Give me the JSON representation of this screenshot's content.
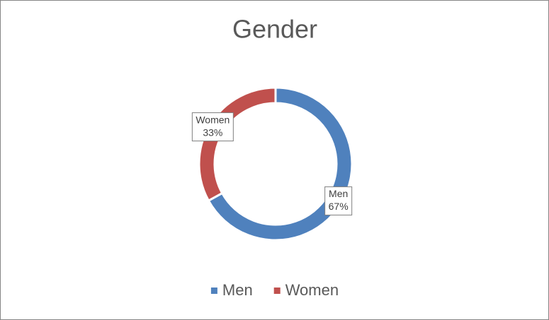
{
  "chart_data": {
    "type": "donut",
    "title": "Gender",
    "categories": [
      "Men",
      "Women"
    ],
    "values": [
      67,
      33
    ],
    "value_labels": [
      "67%",
      "33%"
    ],
    "colors": [
      "#4f81bd",
      "#c0504d"
    ],
    "legend": "bottom"
  }
}
